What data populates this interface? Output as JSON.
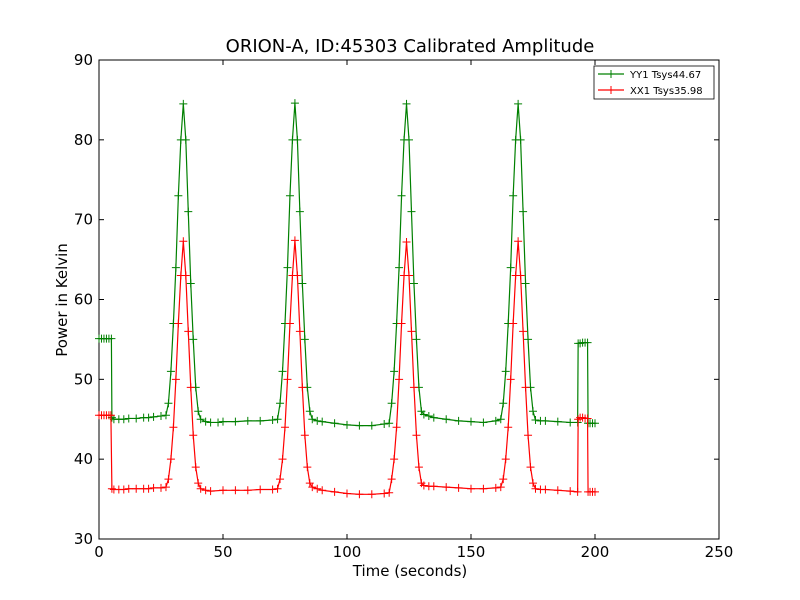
{
  "chart_data": {
    "type": "line",
    "title": "ORION-A, ID:45303 Calibrated Amplitude",
    "xlabel": "Time (seconds)",
    "ylabel": "Power in Kelvin",
    "xlim": [
      0,
      250
    ],
    "ylim": [
      30,
      90
    ],
    "xticks": [
      "0",
      "50",
      "100",
      "150",
      "200",
      "250"
    ],
    "yticks": [
      "30",
      "40",
      "50",
      "60",
      "70",
      "80",
      "90"
    ],
    "grid": false,
    "legend_position": "top-right",
    "marker": "+",
    "series": [
      {
        "name": "YY1 Tsys44.67",
        "color": "#008000",
        "points": [
          [
            0,
            55.1
          ],
          [
            1,
            55.1
          ],
          [
            2,
            55.1
          ],
          [
            3,
            55.1
          ],
          [
            4,
            55.1
          ],
          [
            5,
            55.1
          ],
          [
            5.2,
            45.2
          ],
          [
            6,
            45.0
          ],
          [
            8,
            45.0
          ],
          [
            10,
            45.0
          ],
          [
            12,
            45.1
          ],
          [
            15,
            45.1
          ],
          [
            18,
            45.2
          ],
          [
            20,
            45.2
          ],
          [
            22,
            45.3
          ],
          [
            25,
            45.4
          ],
          [
            27,
            45.5
          ],
          [
            28,
            47
          ],
          [
            29,
            51
          ],
          [
            30,
            57
          ],
          [
            31,
            64
          ],
          [
            32,
            73
          ],
          [
            33,
            80
          ],
          [
            34,
            84.5
          ],
          [
            35,
            80
          ],
          [
            36,
            71
          ],
          [
            37,
            62
          ],
          [
            38,
            55
          ],
          [
            39,
            49
          ],
          [
            40,
            46
          ],
          [
            41,
            45
          ],
          [
            43,
            44.7
          ],
          [
            45,
            44.6
          ],
          [
            48,
            44.6
          ],
          [
            50,
            44.7
          ],
          [
            55,
            44.7
          ],
          [
            60,
            44.8
          ],
          [
            65,
            44.8
          ],
          [
            70,
            44.9
          ],
          [
            72,
            45.0
          ],
          [
            73,
            47
          ],
          [
            74,
            51
          ],
          [
            75,
            57
          ],
          [
            76,
            64
          ],
          [
            77,
            73
          ],
          [
            78,
            80
          ],
          [
            79,
            84.6
          ],
          [
            80,
            80
          ],
          [
            81,
            71
          ],
          [
            82,
            62
          ],
          [
            83,
            55
          ],
          [
            84,
            49
          ],
          [
            85,
            46
          ],
          [
            86,
            45
          ],
          [
            88,
            44.8
          ],
          [
            90,
            44.7
          ],
          [
            95,
            44.5
          ],
          [
            100,
            44.3
          ],
          [
            105,
            44.2
          ],
          [
            110,
            44.2
          ],
          [
            115,
            44.4
          ],
          [
            117,
            44.5
          ],
          [
            118,
            47
          ],
          [
            119,
            51
          ],
          [
            120,
            57
          ],
          [
            121,
            64
          ],
          [
            122,
            73
          ],
          [
            123,
            80
          ],
          [
            124,
            84.5
          ],
          [
            125,
            80
          ],
          [
            126,
            71
          ],
          [
            127,
            62
          ],
          [
            128,
            55
          ],
          [
            129,
            49
          ],
          [
            130,
            46
          ],
          [
            131,
            45.6
          ],
          [
            133,
            45.4
          ],
          [
            135,
            45.2
          ],
          [
            140,
            45.0
          ],
          [
            145,
            44.8
          ],
          [
            150,
            44.7
          ],
          [
            155,
            44.6
          ],
          [
            160,
            44.8
          ],
          [
            162,
            45.0
          ],
          [
            163,
            47
          ],
          [
            164,
            51
          ],
          [
            165,
            57
          ],
          [
            166,
            64
          ],
          [
            167,
            73
          ],
          [
            168,
            80
          ],
          [
            169,
            84.5
          ],
          [
            170,
            80
          ],
          [
            171,
            71
          ],
          [
            172,
            62
          ],
          [
            173,
            55
          ],
          [
            174,
            49
          ],
          [
            175,
            46
          ],
          [
            176,
            44.9
          ],
          [
            178,
            44.8
          ],
          [
            180,
            44.8
          ],
          [
            185,
            44.7
          ],
          [
            190,
            44.6
          ],
          [
            193,
            44.6
          ],
          [
            193.2,
            54.5
          ],
          [
            194,
            54.5
          ],
          [
            195,
            54.6
          ],
          [
            196,
            54.6
          ],
          [
            197,
            54.6
          ],
          [
            197.2,
            44.5
          ],
          [
            198,
            44.5
          ],
          [
            199,
            44.5
          ],
          [
            200,
            44.5
          ]
        ]
      },
      {
        "name": "XX1 Tsys35.98",
        "color": "#ff0000",
        "points": [
          [
            0,
            45.5
          ],
          [
            1,
            45.5
          ],
          [
            2,
            45.5
          ],
          [
            3,
            45.5
          ],
          [
            4,
            45.5
          ],
          [
            4.8,
            45.5
          ],
          [
            5.2,
            36.3
          ],
          [
            6,
            36.2
          ],
          [
            8,
            36.2
          ],
          [
            10,
            36.2
          ],
          [
            12,
            36.3
          ],
          [
            15,
            36.3
          ],
          [
            18,
            36.3
          ],
          [
            20,
            36.3
          ],
          [
            22,
            36.4
          ],
          [
            25,
            36.4
          ],
          [
            27,
            36.5
          ],
          [
            28,
            37.5
          ],
          [
            29,
            40
          ],
          [
            30,
            44
          ],
          [
            31,
            50
          ],
          [
            32,
            57
          ],
          [
            33,
            63
          ],
          [
            34,
            67.3
          ],
          [
            35,
            63
          ],
          [
            36,
            56
          ],
          [
            37,
            49
          ],
          [
            38,
            43
          ],
          [
            39,
            39
          ],
          [
            40,
            37
          ],
          [
            41,
            36.3
          ],
          [
            43,
            36.1
          ],
          [
            45,
            36.0
          ],
          [
            50,
            36.1
          ],
          [
            55,
            36.1
          ],
          [
            60,
            36.1
          ],
          [
            65,
            36.2
          ],
          [
            70,
            36.2
          ],
          [
            72,
            36.3
          ],
          [
            73,
            37.5
          ],
          [
            74,
            40
          ],
          [
            75,
            44
          ],
          [
            76,
            50
          ],
          [
            77,
            57
          ],
          [
            78,
            63
          ],
          [
            79,
            67.4
          ],
          [
            80,
            63
          ],
          [
            81,
            56
          ],
          [
            82,
            49
          ],
          [
            83,
            43
          ],
          [
            84,
            39
          ],
          [
            85,
            37
          ],
          [
            86,
            36.5
          ],
          [
            88,
            36.3
          ],
          [
            90,
            36.1
          ],
          [
            95,
            35.9
          ],
          [
            100,
            35.7
          ],
          [
            105,
            35.6
          ],
          [
            110,
            35.6
          ],
          [
            115,
            35.7
          ],
          [
            117,
            35.8
          ],
          [
            118,
            37.5
          ],
          [
            119,
            40
          ],
          [
            120,
            44
          ],
          [
            121,
            50
          ],
          [
            122,
            57
          ],
          [
            123,
            63
          ],
          [
            124,
            67.2
          ],
          [
            125,
            63
          ],
          [
            126,
            56
          ],
          [
            127,
            49
          ],
          [
            128,
            43
          ],
          [
            129,
            39
          ],
          [
            130,
            37
          ],
          [
            131,
            36.7
          ],
          [
            133,
            36.6
          ],
          [
            135,
            36.6
          ],
          [
            140,
            36.5
          ],
          [
            145,
            36.4
          ],
          [
            150,
            36.3
          ],
          [
            155,
            36.3
          ],
          [
            160,
            36.4
          ],
          [
            162,
            36.5
          ],
          [
            163,
            37.5
          ],
          [
            164,
            40
          ],
          [
            165,
            44
          ],
          [
            166,
            50
          ],
          [
            167,
            57
          ],
          [
            168,
            63
          ],
          [
            169,
            67.3
          ],
          [
            170,
            63
          ],
          [
            171,
            56
          ],
          [
            172,
            49
          ],
          [
            173,
            43
          ],
          [
            174,
            39
          ],
          [
            175,
            37
          ],
          [
            176,
            36.3
          ],
          [
            178,
            36.2
          ],
          [
            180,
            36.2
          ],
          [
            185,
            36.1
          ],
          [
            190,
            36.0
          ],
          [
            193,
            35.9
          ],
          [
            193.2,
            45.0
          ],
          [
            194,
            45.2
          ],
          [
            195,
            45.2
          ],
          [
            196,
            45.1
          ],
          [
            197,
            45.1
          ],
          [
            197.2,
            35.9
          ],
          [
            198,
            35.9
          ],
          [
            199,
            35.9
          ],
          [
            200,
            35.9
          ]
        ]
      }
    ]
  }
}
